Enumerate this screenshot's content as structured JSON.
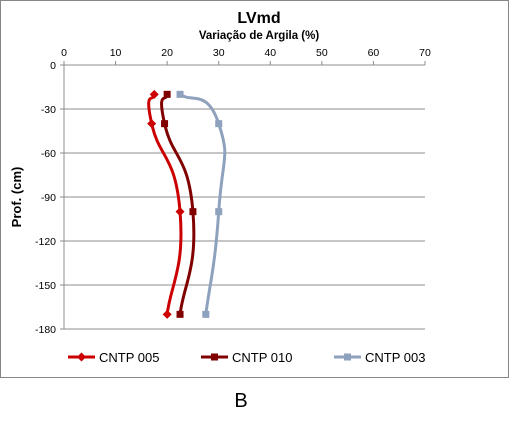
{
  "chart_data": {
    "type": "line",
    "title": "LVmd",
    "xlabel": "Variação de Argila (%)",
    "ylabel": "Prof. (cm)",
    "xlim": [
      0,
      70
    ],
    "ylim": [
      -180,
      0
    ],
    "x_ticks": [
      "0",
      "10",
      "20",
      "30",
      "40",
      "50",
      "60",
      "70"
    ],
    "y_ticks": [
      "0",
      "-30",
      "-60",
      "-90",
      "-120",
      "-150",
      "-180"
    ],
    "x_axis_position": "top",
    "grid": "horizontal",
    "legend_position": "bottom",
    "series": [
      {
        "name": "CNTP 005",
        "color": "#cc0000",
        "marker": "diamond",
        "points": [
          [
            17.5,
            -20
          ],
          [
            17,
            -40
          ],
          [
            22.5,
            -100
          ],
          [
            20,
            -170
          ]
        ]
      },
      {
        "name": "CNTP 010",
        "color": "#800000",
        "marker": "square",
        "points": [
          [
            20,
            -20
          ],
          [
            19.5,
            -40
          ],
          [
            25,
            -100
          ],
          [
            22.5,
            -170
          ]
        ]
      },
      {
        "name": "CNTP 003",
        "color": "#8ea1bd",
        "marker": "square",
        "points": [
          [
            22.5,
            -20
          ],
          [
            30,
            -40
          ],
          [
            30,
            -100
          ],
          [
            27.5,
            -170
          ]
        ]
      }
    ]
  },
  "panel_label": "B"
}
